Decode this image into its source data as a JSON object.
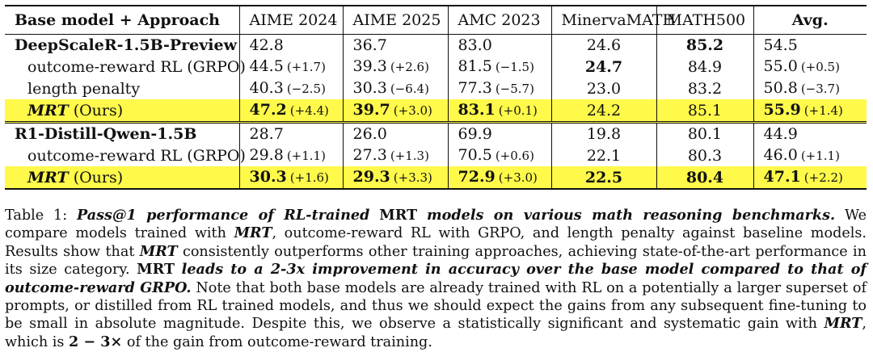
{
  "table": {
    "headers": [
      "Base model + Approach",
      "AIME 2024",
      "AIME 2025",
      "AMC 2023",
      "MinervaMATH",
      "MATH500",
      "Avg."
    ],
    "groups": [
      {
        "base": "DeepScaleR-1.5B-Preview",
        "base_row": {
          "aime24": "42.8",
          "aime25": "36.7",
          "amc23": "83.0",
          "minerva": "24.6",
          "math500": "85.2",
          "avg": "54.5"
        },
        "rows": [
          {
            "method": "outcome-reward RL (GRPO)",
            "aime24": "44.5",
            "aime24_d": "(+1.7)",
            "aime25": "39.3",
            "aime25_d": "(+2.6)",
            "amc23": "81.5",
            "amc23_d": "(−1.5)",
            "minerva": "24.7",
            "math500": "84.9",
            "avg": "55.0",
            "avg_d": "(+0.5)"
          },
          {
            "method": "length penalty",
            "aime24": "40.3",
            "aime24_d": "(−2.5)",
            "aime25": "30.3",
            "aime25_d": "(−6.4)",
            "amc23": "77.3",
            "amc23_d": "(−5.7)",
            "minerva": "23.0",
            "math500": "83.2",
            "avg": "50.8",
            "avg_d": "(−3.7)"
          },
          {
            "method_name": "MRT",
            "method_suffix": "(Ours)",
            "aime24": "47.2",
            "aime24_d": "(+4.4)",
            "aime25": "39.7",
            "aime25_d": "(+3.0)",
            "amc23": "83.1",
            "amc23_d": "(+0.1)",
            "minerva": "24.2",
            "math500": "85.1",
            "avg": "55.9",
            "avg_d": "(+1.4)"
          }
        ]
      },
      {
        "base": "R1-Distill-Qwen-1.5B",
        "base_row": {
          "aime24": "28.7",
          "aime25": "26.0",
          "amc23": "69.9",
          "minerva": "19.8",
          "math500": "80.1",
          "avg": "44.9"
        },
        "rows": [
          {
            "method": "outcome-reward RL (GRPO)",
            "aime24": "29.8",
            "aime24_d": "(+1.1)",
            "aime25": "27.3",
            "aime25_d": "(+1.3)",
            "amc23": "70.5",
            "amc23_d": "(+0.6)",
            "minerva": "22.1",
            "math500": "80.3",
            "avg": "46.0",
            "avg_d": "(+1.1)"
          },
          {
            "method_name": "MRT",
            "method_suffix": "(Ours)",
            "aime24": "30.3",
            "aime24_d": "(+1.6)",
            "aime25": "29.3",
            "aime25_d": "(+3.3)",
            "amc23": "72.9",
            "amc23_d": "(+3.0)",
            "minerva": "22.5",
            "math500": "80.4",
            "avg": "47.1",
            "avg_d": "(+2.2)"
          }
        ]
      }
    ],
    "highlight_color": "#fff94a"
  },
  "caption": {
    "label": "Table 1:",
    "t1": "Pass@1 performance of RL-trained",
    "t2": "MRT",
    "t3": "models on various math reasoning benchmarks.",
    "t4": "We compare models trained with",
    "t5": "MRT",
    "t6": ", outcome-reward RL with GRPO, and length penalty against baseline models. Results show that",
    "t7": "MRT",
    "t8": "consistently outperforms other training approaches, achieving state-of-the-art performance in its size category.",
    "t9": "MRT",
    "t10": "leads to a 2-3x improvement in accuracy over the base model compared to that of outcome-reward GRPO.",
    "t11": "Note that both base models are already trained with RL on a potentially a larger superset of prompts, or distilled from RL trained models, and thus we should expect the gains from any subsequent fine-tuning to be small in absolute magnitude. Despite this, we observe a statistically significant and systematic gain with",
    "t12": "MRT",
    "t13": ", which is",
    "t14": "2 − 3×",
    "t15": "of the gain from outcome-reward training."
  }
}
